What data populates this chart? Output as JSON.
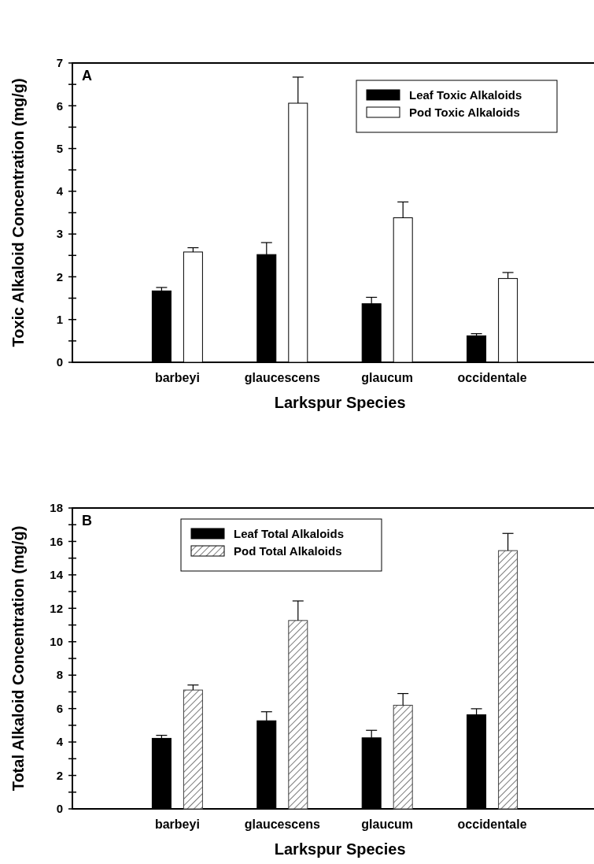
{
  "chart_data": [
    {
      "type": "bar",
      "title": "A",
      "xlabel": "Larkspur Species",
      "ylabel": "Toxic Alkaloid Concentration (mg/g)",
      "categories": [
        "barbeyi",
        "glaucescens",
        "glaucum",
        "occidentale"
      ],
      "series": [
        {
          "name": "Leaf Toxic Alkaloids",
          "color": "#000000",
          "values": [
            1.67,
            2.52,
            1.37,
            0.62
          ],
          "errors": [
            0.08,
            0.28,
            0.15,
            0.05
          ]
        },
        {
          "name": "Pod Toxic Alkaloids",
          "color": "#ffffff",
          "values": [
            2.58,
            6.06,
            3.38,
            1.96
          ],
          "errors": [
            0.1,
            0.61,
            0.37,
            0.14
          ]
        }
      ],
      "ylim": [
        0,
        7
      ],
      "yticks": [
        0,
        {
          "value": 0.5,
          "label": null
        },
        1,
        {
          "value": 1.5,
          "label": null
        },
        2,
        {
          "value": 2.5,
          "label": null
        },
        3,
        {
          "value": 3.5,
          "label": null
        },
        4,
        {
          "value": 4.5,
          "label": null
        },
        5,
        {
          "value": 5.5,
          "label": null
        },
        6,
        {
          "value": 6.5,
          "label": null
        },
        7
      ],
      "legend": "top right",
      "grid": false
    },
    {
      "type": "bar",
      "title": "B",
      "xlabel": "Larkspur Species",
      "ylabel": "Total Alkaloid Concentration (mg/g)",
      "categories": [
        "barbeyi",
        "glaucescens",
        "glaucum",
        "occidentale"
      ],
      "series": [
        {
          "name": "Leaf Total Alkaloids",
          "color": "#000000",
          "values": [
            4.22,
            5.27,
            4.25,
            5.63
          ],
          "errors": [
            0.18,
            0.54,
            0.45,
            0.36
          ]
        },
        {
          "name": "Pod Total Alkaloids",
          "color": "#404040",
          "values": [
            7.11,
            11.27,
            6.2,
            15.45
          ],
          "errors": [
            0.3,
            1.17,
            0.7,
            1.03
          ]
        }
      ],
      "ylim": [
        0,
        18
      ],
      "yticks": [
        0,
        {
          "value": 1,
          "label": null
        },
        2,
        {
          "value": 3,
          "label": null
        },
        4,
        {
          "value": 5,
          "label": null
        },
        6,
        {
          "value": 7,
          "label": null
        },
        8,
        {
          "value": 9,
          "label": null
        },
        10,
        {
          "value": 11,
          "label": null
        },
        12,
        {
          "value": 13,
          "label": null
        },
        14,
        {
          "value": 15,
          "label": null
        },
        16,
        {
          "value": 17,
          "label": null
        },
        18
      ],
      "legend": "top left",
      "grid": false
    }
  ]
}
